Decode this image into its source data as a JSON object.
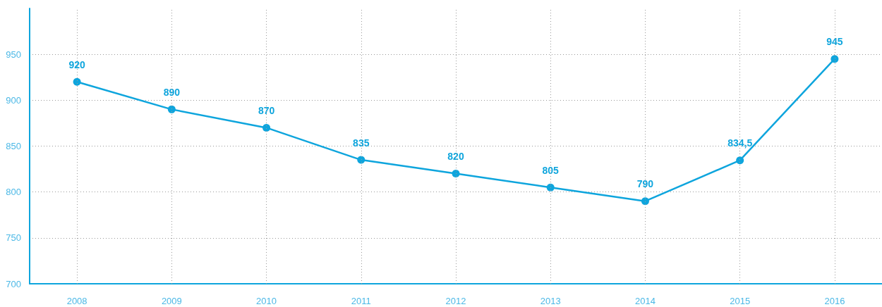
{
  "chart_data": {
    "type": "line",
    "categories": [
      "2008",
      "2009",
      "2010",
      "2011",
      "2012",
      "2013",
      "2014",
      "2015",
      "2016"
    ],
    "series": [
      {
        "color": "#0ea5dd",
        "values": [
          920,
          890,
          870,
          835,
          820,
          805,
          790,
          834.5,
          945
        ],
        "value_labels": [
          "920",
          "890",
          "870",
          "835",
          "820",
          "805",
          "790",
          "834,5",
          "945"
        ]
      }
    ],
    "ylim": [
      700,
      1000
    ],
    "yticks": [
      700,
      750,
      800,
      850,
      900,
      950
    ],
    "grid": true,
    "marker": "circle",
    "line_style": "solid"
  }
}
